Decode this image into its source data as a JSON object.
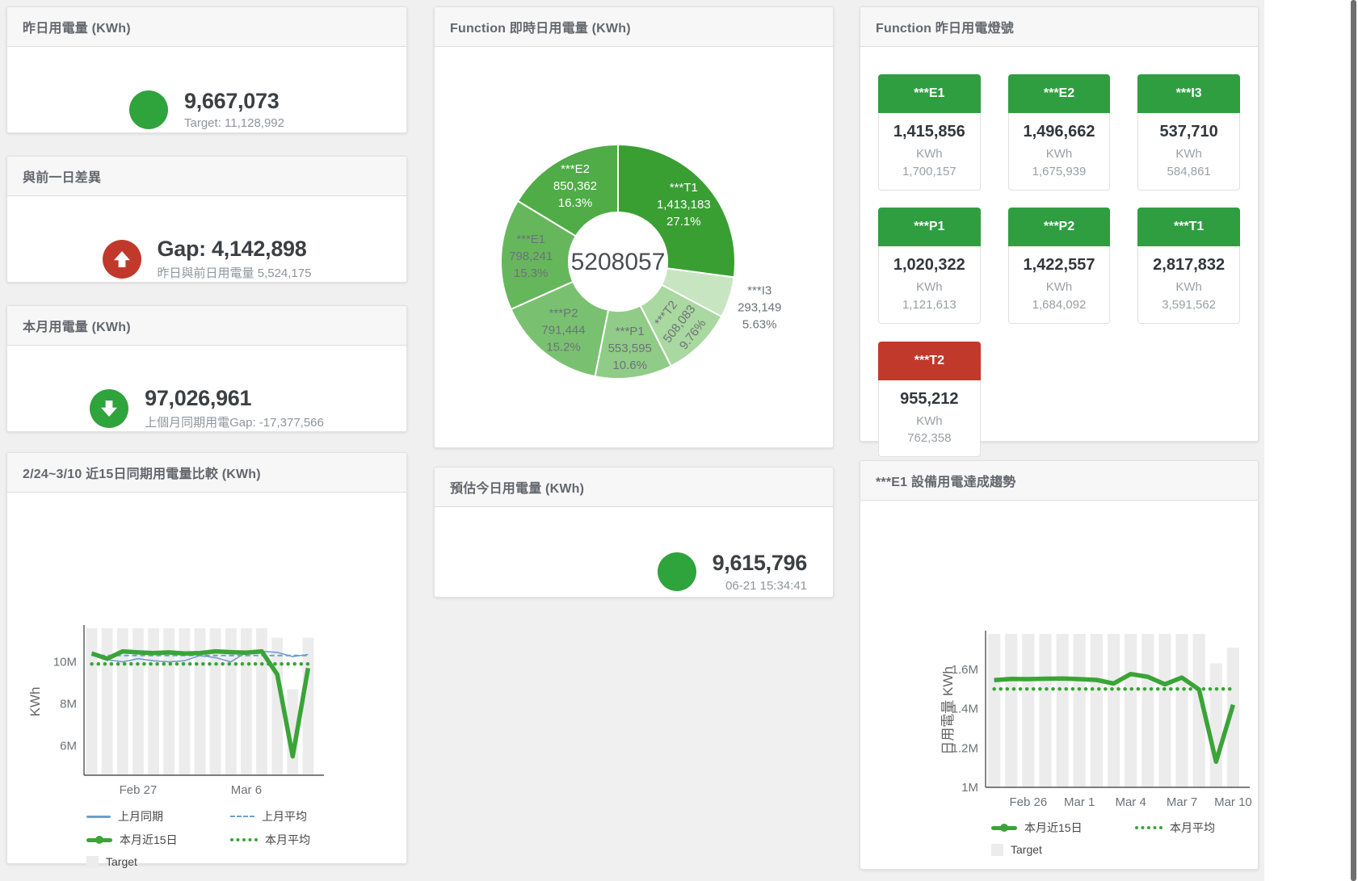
{
  "colors": {
    "green": "#2fa33c",
    "tile_green": "#2f9e41",
    "red": "#c0392b",
    "blue_line": "#6a9fd0",
    "green_line": "#3aa437",
    "bar_gray": "#ececec"
  },
  "panels": {
    "yesterday": {
      "title": "昨日用電量 (KWh)",
      "value": "9,667,073",
      "sub": "Target: 11,128,992"
    },
    "gap_prev_day": {
      "title": "與前一日差異",
      "value": "Gap: 4,142,898",
      "sub": "昨日與前日用電量 5,524,175"
    },
    "month": {
      "title": "本月用電量 (KWh)",
      "value": "97,026,961",
      "sub": "上個月同期用電Gap: -17,377,566"
    },
    "compare15": {
      "title": "2/24~3/10 近15日同期用電量比較 (KWh)"
    },
    "realtime_pie": {
      "title": "Function 即時日用電量 (KWh)"
    },
    "estimate": {
      "title": "預估今日用電量 (KWh)",
      "value": "9,615,796",
      "sub": "06-21 15:34:41"
    },
    "lights": {
      "title": "Function 昨日用電燈號",
      "unit": "KWh",
      "tiles": [
        {
          "label": "***E1",
          "value": "1,415,856",
          "target": "1,700,157",
          "header_color": "#2f9e41"
        },
        {
          "label": "***E2",
          "value": "1,496,662",
          "target": "1,675,939",
          "header_color": "#2f9e41"
        },
        {
          "label": "***I3",
          "value": "537,710",
          "target": "584,861",
          "header_color": "#2f9e41"
        },
        {
          "label": "***P1",
          "value": "1,020,322",
          "target": "1,121,613",
          "header_color": "#2f9e41"
        },
        {
          "label": "***P2",
          "value": "1,422,557",
          "target": "1,684,092",
          "header_color": "#2f9e41"
        },
        {
          "label": "***T1",
          "value": "2,817,832",
          "target": "3,591,562",
          "header_color": "#2f9e41"
        },
        {
          "label": "***T2",
          "value": "955,212",
          "target": "762,358",
          "header_color": "#c0392b"
        }
      ]
    },
    "trend_e1": {
      "title": "***E1 設備用電達成趨勢"
    }
  },
  "chart_data": [
    {
      "type": "pie",
      "title": "Function 即時日用電量 (KWh)",
      "center_label": "5208057",
      "geom": {
        "cx": 227,
        "cy": 266,
        "r_inner": 61,
        "r_outer": 145,
        "label_r_inside": 108,
        "label_r_outside": 184
      },
      "slices": [
        {
          "name": "***T1",
          "value": 1413183,
          "display": "1,413,183",
          "pct": "27.1%",
          "color": "#3a9f33",
          "label": "inside",
          "label_color": "#ffffff",
          "rotate": 0
        },
        {
          "name": "***I3",
          "value": 293149,
          "display": "293,149",
          "pct": "5.63%",
          "color": "#c8e5c1",
          "label": "outside",
          "label_color": "#6d7278",
          "rotate": 0
        },
        {
          "name": "***T2",
          "value": 508083,
          "display": "508,083",
          "pct": "9.76%",
          "color": "#a9d8a0",
          "label": "inside",
          "label_color": "#6d7278",
          "rotate": -52
        },
        {
          "name": "***P1",
          "value": 553595,
          "display": "553,595",
          "pct": "10.6%",
          "color": "#90cc87",
          "label": "inside",
          "label_color": "#6d7278",
          "rotate": 0
        },
        {
          "name": "***P2",
          "value": 791444,
          "display": "791,444",
          "pct": "15.2%",
          "color": "#79c170",
          "label": "inside",
          "label_color": "#6d7278",
          "rotate": 0
        },
        {
          "name": "***E1",
          "value": 798241,
          "display": "798,241",
          "pct": "15.3%",
          "color": "#66b75c",
          "label": "inside",
          "label_color": "#6d7278",
          "rotate": 0
        },
        {
          "name": "***E2",
          "value": 850362,
          "display": "850,362",
          "pct": "16.3%",
          "color": "#4fac46",
          "label": "inside",
          "label_color": "#ffffff",
          "rotate": 0
        }
      ]
    },
    {
      "type": "line+bar",
      "title": "2/24~3/10 近15日同期用電量比較 (KWh)",
      "ylabel": "KWh",
      "ylabel_x": 30,
      "ylim": [
        4.6,
        11.6
      ],
      "yticks": [
        {
          "v": 6,
          "label": "6M"
        },
        {
          "v": 8,
          "label": "8M"
        },
        {
          "v": 10,
          "label": "10M"
        }
      ],
      "categories": [
        "2/24",
        "2/25",
        "2/26",
        "2/27",
        "2/28",
        "3/1",
        "3/2",
        "3/3",
        "3/4",
        "3/5",
        "3/6",
        "3/7",
        "3/8",
        "3/9",
        "3/10"
      ],
      "xticks": [
        {
          "i": 3,
          "label": "Feb 27"
        },
        {
          "i": 10,
          "label": "Mar 6"
        }
      ],
      "plot": {
        "l": 85,
        "r": 372,
        "t": 168,
        "b": 350
      },
      "bars": {
        "name": "Target",
        "color": "#ececec",
        "values": [
          11.6,
          11.6,
          11.6,
          11.6,
          11.6,
          11.6,
          11.6,
          11.6,
          11.6,
          11.6,
          11.6,
          11.6,
          11.15,
          8.7,
          11.15
        ]
      },
      "series": [
        {
          "name": "上月同期",
          "color": "#6a9fd0",
          "width": 1.6,
          "style": "solid",
          "values": [
            10.45,
            10.1,
            10.0,
            10.15,
            10.05,
            10.0,
            10.05,
            10.3,
            10.2,
            10.0,
            10.45,
            10.5,
            10.45,
            10.25,
            10.35
          ]
        },
        {
          "name": "上月平均",
          "color": "#6a9fd0",
          "width": 2,
          "style": "dashed",
          "values": [
            10.3,
            10.3,
            10.3,
            10.3,
            10.3,
            10.3,
            10.3,
            10.3,
            10.3,
            10.3,
            10.3,
            10.3,
            10.3,
            10.3,
            10.3
          ]
        },
        {
          "name": "本月平均",
          "color": "#3aa437",
          "width": 4.5,
          "style": "dotted",
          "values": [
            9.9,
            9.9,
            9.9,
            9.9,
            9.9,
            9.9,
            9.9,
            9.9,
            9.9,
            9.9,
            9.9,
            9.9,
            9.9,
            9.9,
            9.9
          ]
        },
        {
          "name": "本月近15日",
          "color": "#3aa437",
          "width": 5.5,
          "style": "solid",
          "values": [
            10.4,
            10.15,
            10.5,
            10.45,
            10.42,
            10.45,
            10.4,
            10.42,
            10.5,
            10.46,
            10.44,
            10.5,
            9.4,
            5.5,
            9.7
          ]
        }
      ],
      "legend": [
        {
          "label": "上月同期",
          "swatch": "line",
          "color": "#6a9fd0"
        },
        {
          "label": "上月平均",
          "swatch": "dashed",
          "color": "#6a9fd0"
        },
        {
          "label": "本月近15日",
          "swatch": "thick",
          "color": "#3aa437"
        },
        {
          "label": "本月平均",
          "swatch": "dotted",
          "color": "#3aa437"
        },
        {
          "label": "Target",
          "swatch": "box",
          "color": "#ececec"
        }
      ]
    },
    {
      "type": "line+bar",
      "title": "***E1 設備用電達成趨勢",
      "ylabel": "日用電量 KWh",
      "ylabel_x": 104,
      "ylim": [
        1.0,
        1.78
      ],
      "yticks": [
        {
          "v": 1,
          "label": "1M"
        },
        {
          "v": 1.2,
          "label": "1.2M"
        },
        {
          "v": 1.4,
          "label": "1.4M"
        },
        {
          "v": 1.6,
          "label": "1.6M"
        }
      ],
      "categories": [
        "2/24",
        "2/25",
        "2/26",
        "2/27",
        "2/28",
        "3/1",
        "3/2",
        "3/3",
        "3/4",
        "3/5",
        "3/6",
        "3/7",
        "3/8",
        "3/9",
        "3/10"
      ],
      "xticks": [
        {
          "i": 2,
          "label": "Feb 26"
        },
        {
          "i": 5,
          "label": "Mar 1"
        },
        {
          "i": 8,
          "label": "Mar 4"
        },
        {
          "i": 11,
          "label": "Mar 7"
        },
        {
          "i": 14,
          "label": "Mar 10"
        }
      ],
      "plot": {
        "l": 145,
        "r": 462,
        "t": 165,
        "b": 355
      },
      "bars": {
        "name": "Target",
        "color": "#ececec",
        "values": [
          1.78,
          1.78,
          1.78,
          1.78,
          1.78,
          1.78,
          1.78,
          1.78,
          1.78,
          1.78,
          1.78,
          1.78,
          1.78,
          1.63,
          1.71
        ]
      },
      "series": [
        {
          "name": "本月平均",
          "color": "#3aa437",
          "width": 4.5,
          "style": "dotted",
          "values": [
            1.5,
            1.5,
            1.5,
            1.5,
            1.5,
            1.5,
            1.5,
            1.5,
            1.5,
            1.5,
            1.5,
            1.5,
            1.5,
            1.5,
            1.5
          ]
        },
        {
          "name": "本月近15日",
          "color": "#3aa437",
          "width": 5.5,
          "style": "solid",
          "values": [
            1.545,
            1.551,
            1.55,
            1.552,
            1.553,
            1.55,
            1.546,
            1.528,
            1.576,
            1.562,
            1.524,
            1.558,
            1.497,
            1.13,
            1.42
          ]
        }
      ],
      "legend": [
        {
          "label": "本月近15日",
          "swatch": "thick",
          "color": "#3aa437"
        },
        {
          "label": "本月平均",
          "swatch": "dotted",
          "color": "#3aa437"
        },
        {
          "label": "Target",
          "swatch": "box",
          "color": "#ececec"
        }
      ]
    }
  ]
}
